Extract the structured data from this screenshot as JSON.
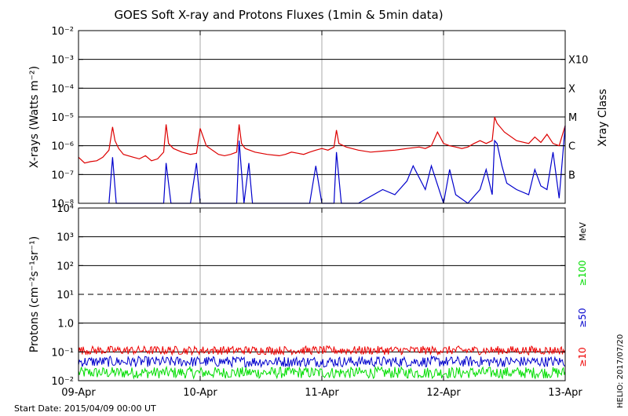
{
  "chart_data": {
    "type": "line",
    "title": "GOES Soft X-ray and Protons Fluxes   (1min & 5min data)",
    "start_date_label": "Start Date: 2015/04/09 00:00 UT",
    "credit_label": "HELIO: 2017/07/20",
    "x_tick_labels": [
      "09-Apr",
      "10-Apr",
      "11-Apr",
      "12-Apr",
      "13-Apr"
    ],
    "x_range_days": [
      0,
      4
    ],
    "xray": {
      "ylabel": "X-rays (Watts m⁻²)",
      "scale": "log",
      "ylim": [
        1e-08,
        0.01
      ],
      "y_tick_labels": [
        "10⁻⁸",
        "10⁻⁷",
        "10⁻⁶",
        "10⁻⁵",
        "10⁻⁴",
        "10⁻³",
        "10⁻²"
      ],
      "class_axis_label": "Xray Class",
      "class_labels": [
        "B",
        "C",
        "M",
        "X",
        "X10"
      ],
      "series": [
        {
          "color": "#dd0000",
          "x_days": [
            0,
            0.05,
            0.1,
            0.15,
            0.2,
            0.25,
            0.28,
            0.3,
            0.33,
            0.37,
            0.45,
            0.5,
            0.55,
            0.6,
            0.65,
            0.7,
            0.72,
            0.74,
            0.78,
            0.85,
            0.92,
            0.97,
            1.0,
            1.05,
            1.1,
            1.15,
            1.2,
            1.25,
            1.3,
            1.32,
            1.34,
            1.37,
            1.45,
            1.55,
            1.65,
            1.7,
            1.75,
            1.8,
            1.85,
            1.9,
            1.95,
            2.0,
            2.05,
            2.1,
            2.12,
            2.14,
            2.2,
            2.3,
            2.4,
            2.5,
            2.6,
            2.7,
            2.8,
            2.85,
            2.9,
            2.95,
            3.0,
            3.05,
            3.1,
            3.15,
            3.2,
            3.25,
            3.3,
            3.35,
            3.4,
            3.42,
            3.44,
            3.5,
            3.6,
            3.7,
            3.75,
            3.8,
            3.85,
            3.9,
            3.95,
            4.0
          ],
          "y": [
            4e-07,
            2.5e-07,
            2.8e-07,
            3e-07,
            4e-07,
            7e-07,
            4.5e-06,
            1.5e-06,
            8e-07,
            5e-07,
            4e-07,
            3.5e-07,
            4.5e-07,
            3e-07,
            3.5e-07,
            6e-07,
            5.5e-06,
            1.2e-06,
            8e-07,
            6e-07,
            5e-07,
            5.5e-07,
            4e-06,
            1e-06,
            7e-07,
            5e-07,
            4.5e-07,
            5e-07,
            6e-07,
            5.5e-06,
            1.2e-06,
            8e-07,
            6e-07,
            5e-07,
            4.5e-07,
            5e-07,
            6e-07,
            5.5e-07,
            5e-07,
            6e-07,
            7e-07,
            8e-07,
            7e-07,
            9e-07,
            3.5e-06,
            1.2e-06,
            9e-07,
            7e-07,
            6e-07,
            6.5e-07,
            7e-07,
            8e-07,
            9e-07,
            8e-07,
            1e-06,
            3e-06,
            1.2e-06,
            1e-06,
            9e-07,
            8e-07,
            9e-07,
            1.2e-06,
            1.5e-06,
            1.2e-06,
            1.5e-06,
            1e-05,
            6e-06,
            3e-06,
            1.5e-06,
            1.2e-06,
            2e-06,
            1.3e-06,
            2.5e-06,
            1.2e-06,
            1e-06,
            5e-06
          ]
        },
        {
          "color": "#0000cc",
          "x_days": [
            0.25,
            0.28,
            0.31,
            0.7,
            0.72,
            0.76,
            0.92,
            0.97,
            1.0,
            1.3,
            1.32,
            1.36,
            1.4,
            1.43,
            1.9,
            1.95,
            2.0,
            2.1,
            2.12,
            2.16,
            2.3,
            2.5,
            2.6,
            2.7,
            2.75,
            2.85,
            2.9,
            3.0,
            3.05,
            3.1,
            3.2,
            3.3,
            3.35,
            3.4,
            3.42,
            3.44,
            3.48,
            3.52,
            3.6,
            3.7,
            3.75,
            3.8,
            3.85,
            3.9,
            3.95,
            4.0
          ],
          "y": [
            1e-08,
            4e-07,
            1e-08,
            1e-08,
            2.5e-07,
            1e-08,
            1e-08,
            2.5e-07,
            1e-08,
            1e-08,
            1.5e-06,
            1e-08,
            2.5e-07,
            1e-08,
            1e-08,
            2e-07,
            1e-08,
            1e-08,
            6e-07,
            1e-08,
            1e-08,
            3e-08,
            2e-08,
            6e-08,
            2e-07,
            3e-08,
            2e-07,
            1e-08,
            1.5e-07,
            2e-08,
            1e-08,
            3e-08,
            1.5e-07,
            2e-08,
            1.5e-06,
            1.2e-06,
            2e-07,
            5e-08,
            3e-08,
            2e-08,
            1.5e-07,
            4e-08,
            3e-08,
            6e-07,
            1.5e-08,
            5e-06
          ]
        }
      ]
    },
    "protons": {
      "ylabel": "Protons (cm⁻²s⁻¹sr⁻¹)",
      "scale": "log",
      "ylim": [
        0.01,
        10000
      ],
      "y_tick_labels": [
        "10⁻²",
        "10⁻¹",
        "1.0",
        "10¹",
        "10²",
        "10³",
        "10⁴"
      ],
      "threshold_value": 10,
      "unit_label": "MeV",
      "series": [
        {
          "name": "≥10",
          "color": "#ee0000",
          "level_low": 0.08,
          "level_high": 0.16
        },
        {
          "name": "≥50",
          "color": "#0000cc",
          "level_low": 0.03,
          "level_high": 0.07
        },
        {
          "name": "≥100",
          "color": "#00dd00",
          "level_low": 0.012,
          "level_high": 0.03
        }
      ]
    }
  }
}
